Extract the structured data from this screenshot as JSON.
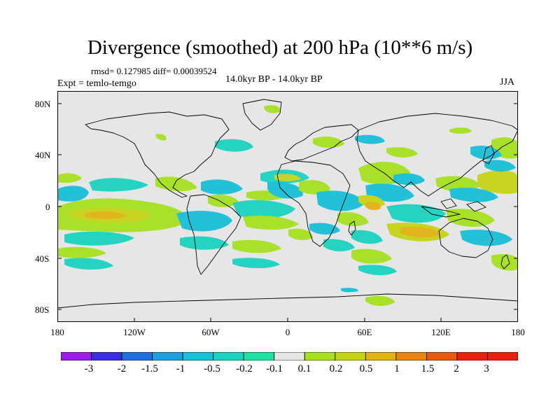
{
  "header": {
    "title": "Divergence (smoothed) at 200 hPa (10**6 m/s)",
    "stats": "rmsd= 0.127985  diff= 0.00039524",
    "experiment": "Expt = temlo-temgo",
    "period": "14.0kyr BP - 14.0kyr BP",
    "season": "JJA"
  },
  "map": {
    "lat_labels": [
      "80N",
      "40N",
      "0",
      "40S",
      "80S"
    ],
    "lon_labels": [
      "180",
      "120W",
      "60W",
      "0",
      "60E",
      "120E",
      "180"
    ]
  },
  "colorbar": {
    "labels": [
      "-3",
      "-2",
      "-1.5",
      "-1",
      "-0.5",
      "-0.2",
      "-0.1",
      "0.1",
      "0.2",
      "0.5",
      "1",
      "1.5",
      "2",
      "3"
    ],
    "colors": [
      "#9b1be8",
      "#3a2fe0",
      "#1f6fe0",
      "#1d9fe0",
      "#18c0d8",
      "#1ad2c0",
      "#1ee3a0",
      "#e6e6e6",
      "#a6e01f",
      "#c6d418",
      "#e2b214",
      "#e68510",
      "#e65a10",
      "#e8200f"
    ]
  }
}
